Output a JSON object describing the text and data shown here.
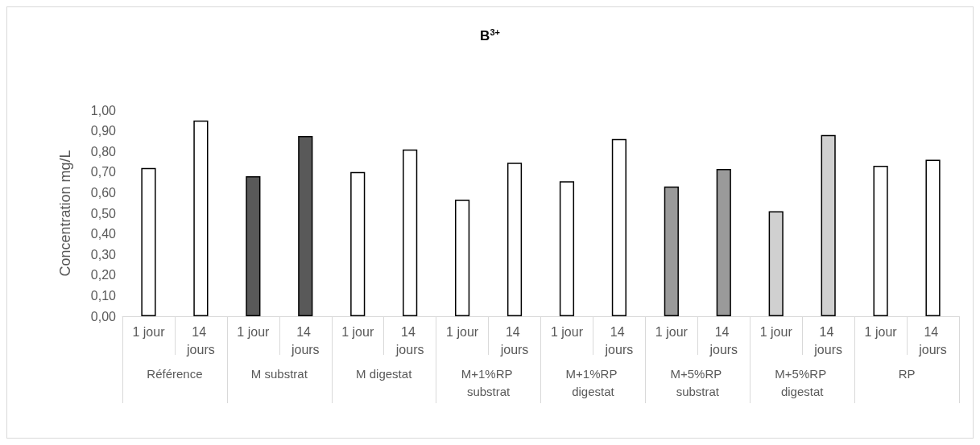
{
  "chart_data": {
    "type": "bar",
    "title": "B$^{3+}$",
    "ylabel": "Concentration mg/L",
    "categories": [
      "1 jour",
      "14 jours",
      "1 jour",
      "14 jours",
      "1 jour",
      "14 jours",
      "1 jour",
      "14 jours",
      "1 jour",
      "14 jours",
      "1 jour",
      "14 jours",
      "1 jour",
      "14 jours",
      "1 jour",
      "14 jours"
    ],
    "values": [
      0.72,
      0.95,
      0.68,
      0.875,
      0.7,
      0.81,
      0.565,
      0.745,
      0.655,
      0.86,
      0.63,
      0.715,
      0.51,
      0.88,
      0.73,
      0.76
    ],
    "colors": [
      "#ffffff",
      "#ffffff",
      "#595959",
      "#595959",
      "#ffffff",
      "#ffffff",
      "#ffffff",
      "#ffffff",
      "#ffffff",
      "#ffffff",
      "#9a9a9a",
      "#9a9a9a",
      "#d0d0d0",
      "#d0d0d0",
      "#ffffff",
      "#ffffff"
    ],
    "annotations": [
      "Référence",
      "M substrat",
      "M digestat",
      "M+1%RP substrat",
      "M+1%RP digestat",
      "M+5%RP substrat",
      "M+5%RP digestat",
      "RP"
    ],
    "ylim": [
      0,
      1
    ],
    "yticks": [
      {
        "value": 0,
        "label": "0,00"
      },
      {
        "value": 0.1,
        "label": "0,10"
      },
      {
        "value": 0.2,
        "label": "0,20"
      },
      {
        "value": 0.3,
        "label": "0,30"
      },
      {
        "value": 0.4,
        "label": "0,40"
      },
      {
        "value": 0.5,
        "label": "0,50"
      },
      {
        "value": 0.6,
        "label": "0,60"
      },
      {
        "value": 0.7,
        "label": "0,70"
      },
      {
        "value": 0.8,
        "label": "0,80"
      },
      {
        "value": 0.9,
        "label": "0,90"
      },
      {
        "value": 1,
        "label": "1,00"
      }
    ],
    "grid": false
  }
}
